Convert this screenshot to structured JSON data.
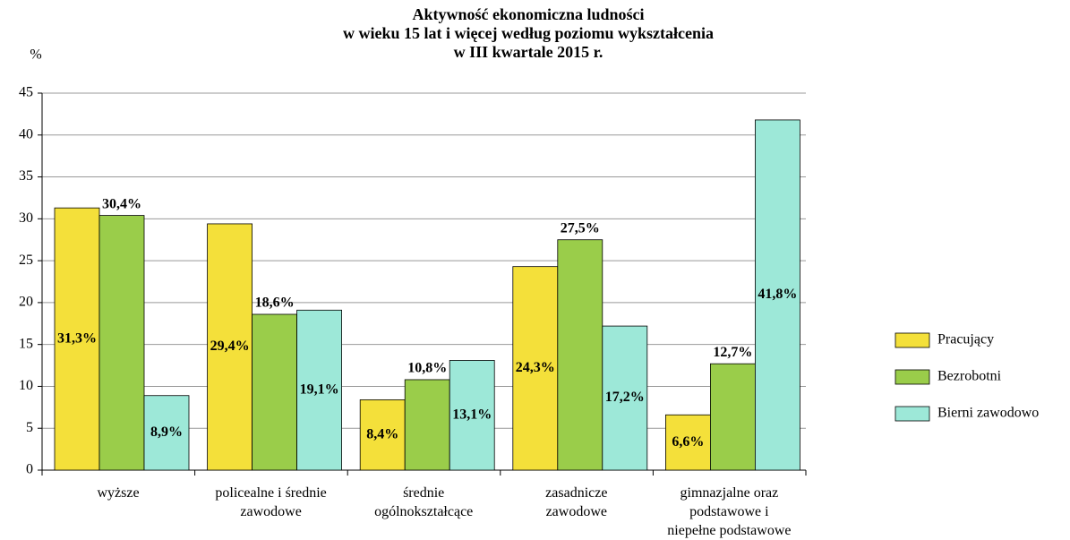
{
  "chart_data": {
    "type": "bar",
    "title": "Aktywność ekonomiczna ludności\nw wieku 15 lat i więcej według poziomu wykształcenia\nw III kwartale 2015 r.",
    "y_label": "%",
    "categories": [
      "wyższe",
      "policealne i średnie\nzawodowe",
      "średnie\nogólnokształcące",
      "zasadnicze\nzawodowe",
      "gimnazjalne oraz\npodstawowe i\nniepełne podstawowe"
    ],
    "series": [
      {
        "name": "Pracujący",
        "color": "#f4e03a",
        "values": [
          31.3,
          29.4,
          8.4,
          24.3,
          6.6
        ],
        "value_labels": [
          "31,3%",
          "29,4%",
          "8,4%",
          "24,3%",
          "6,6%"
        ]
      },
      {
        "name": "Bezrobotni",
        "color": "#9acd4a",
        "values": [
          30.4,
          18.6,
          10.8,
          27.5,
          12.7
        ],
        "value_labels": [
          "30,4%",
          "18,6%",
          "10,8%",
          "27,5%",
          "12,7%"
        ]
      },
      {
        "name": "Bierni zawodowo",
        "color": "#9de8d8",
        "values": [
          8.9,
          19.1,
          13.1,
          17.2,
          41.8
        ],
        "value_labels": [
          "8,9%",
          "19,1%",
          "13,1%",
          "17,2%",
          "41,8%"
        ]
      }
    ],
    "ylim": [
      0,
      45
    ],
    "yticks": [
      0,
      5,
      10,
      15,
      20,
      25,
      30,
      35,
      40,
      45
    ],
    "grid": true,
    "legend": "right"
  }
}
